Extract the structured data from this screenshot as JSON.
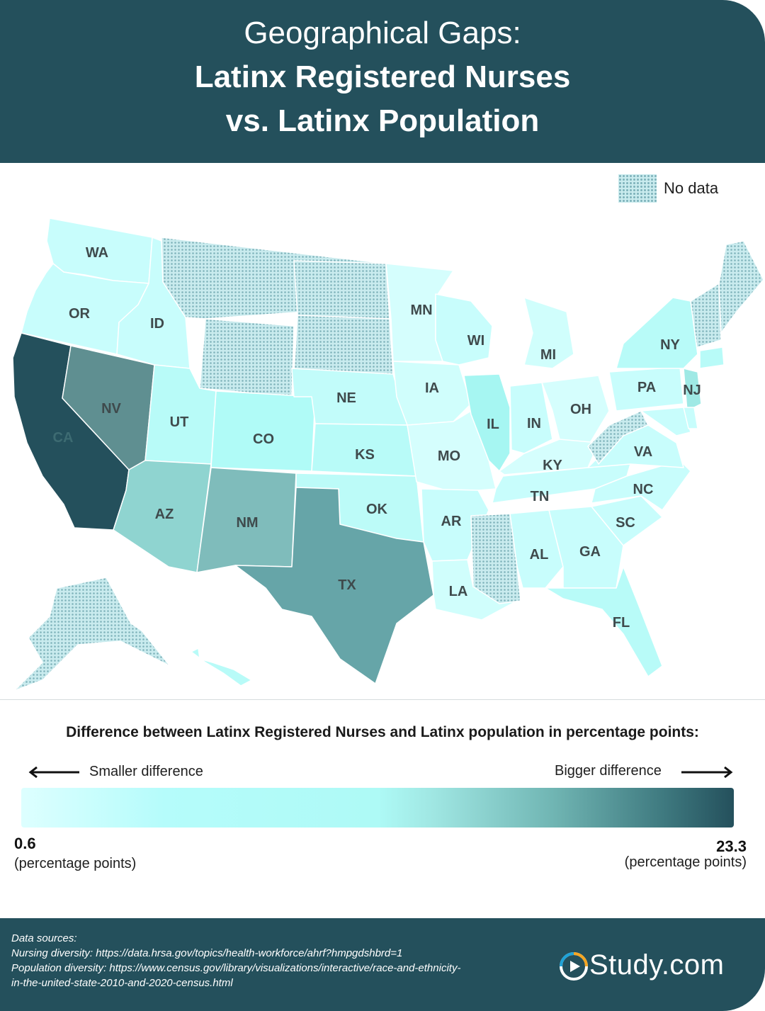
{
  "title": {
    "line1": "Geographical Gaps:",
    "line2": "Latinx Registered Nurses",
    "line3": "vs. Latinx Population"
  },
  "no_data_legend": {
    "label": "No data"
  },
  "states": [
    {
      "abbr": "WA",
      "fill": "#c8fdfc"
    },
    {
      "abbr": "OR",
      "fill": "#c8fdfc"
    },
    {
      "abbr": "CA",
      "fill": "#24505c"
    },
    {
      "abbr": "NV",
      "fill": "#5f8f91"
    },
    {
      "abbr": "ID",
      "fill": "#c8fdfc"
    },
    {
      "abbr": "MT",
      "fill": "nodata"
    },
    {
      "abbr": "WY",
      "fill": "nodata"
    },
    {
      "abbr": "UT",
      "fill": "#b8fbf8"
    },
    {
      "abbr": "AZ",
      "fill": "#8fd4d0"
    },
    {
      "abbr": "CO",
      "fill": "#b0fbf7"
    },
    {
      "abbr": "NM",
      "fill": "#7fbcbb"
    },
    {
      "abbr": "ND",
      "fill": "nodata"
    },
    {
      "abbr": "SD",
      "fill": "nodata"
    },
    {
      "abbr": "NE",
      "fill": "#c2fcfa"
    },
    {
      "abbr": "KS",
      "fill": "#b8fbf8"
    },
    {
      "abbr": "OK",
      "fill": "#bcfbf8"
    },
    {
      "abbr": "TX",
      "fill": "#66a5a8"
    },
    {
      "abbr": "MN",
      "fill": "#d5fefd"
    },
    {
      "abbr": "IA",
      "fill": "#d0fefc"
    },
    {
      "abbr": "MO",
      "fill": "#d5fefd"
    },
    {
      "abbr": "AR",
      "fill": "#c8fdfc"
    },
    {
      "abbr": "LA",
      "fill": "#d0fefc"
    },
    {
      "abbr": "WI",
      "fill": "#c8fdfc"
    },
    {
      "abbr": "IL",
      "fill": "#a6f6f2"
    },
    {
      "abbr": "MI",
      "fill": "#d0fefc"
    },
    {
      "abbr": "IN",
      "fill": "#c8fdfc"
    },
    {
      "abbr": "OH",
      "fill": "#d5fefd"
    },
    {
      "abbr": "KY",
      "fill": "#d5fefd"
    },
    {
      "abbr": "TN",
      "fill": "#c8fdfc"
    },
    {
      "abbr": "MS",
      "fill": "nodata"
    },
    {
      "abbr": "AL",
      "fill": "#c8fdfc"
    },
    {
      "abbr": "GA",
      "fill": "#c8fdfc"
    },
    {
      "abbr": "FL",
      "fill": "#b8fbf8"
    },
    {
      "abbr": "SC",
      "fill": "#c8fdfc"
    },
    {
      "abbr": "NC",
      "fill": "#c8fdfc"
    },
    {
      "abbr": "VA",
      "fill": "#c8fdfc"
    },
    {
      "abbr": "WV",
      "fill": "nodata"
    },
    {
      "abbr": "PA",
      "fill": "#c8fdfc"
    },
    {
      "abbr": "NY",
      "fill": "#b8fbf8"
    },
    {
      "abbr": "NJ",
      "fill": "#9fe9e5"
    },
    {
      "abbr": "NE-states",
      "fill": "nodata"
    },
    {
      "abbr": "ME",
      "fill": "nodata"
    },
    {
      "abbr": "CT",
      "fill": "#b8fbf8"
    },
    {
      "abbr": "MD",
      "fill": "#c8fdfc"
    },
    {
      "abbr": "DE",
      "fill": "#c8fdfc"
    },
    {
      "abbr": "AK",
      "fill": "nodata"
    },
    {
      "abbr": "HI",
      "fill": "#b8fbf8"
    }
  ],
  "legend": {
    "title": "Difference between Latinx Registered Nurses and Latinx population in percentage points:",
    "smaller_label": "Smaller difference",
    "bigger_label": "Bigger difference",
    "min_value": "0.6",
    "max_value": "23.3",
    "unit": "(percentage points)"
  },
  "footer": {
    "sources_heading": "Data sources:",
    "nursing_source": "Nursing diversity: https://data.hrsa.gov/topics/health-workforce/ahrf?hmpgdshbrd=1",
    "population_source_1": "Population diversity: https://www.census.gov/library/visualizations/interactive/race-and-ethnicity-",
    "population_source_2": "in-the-united-state-2010-and-2020-census.html",
    "logo_text": "Study.com"
  },
  "colors": {
    "header_bg": "#24505c",
    "nodata_fill": "#c9ebee",
    "nodata_dot": "#7fb3bb"
  }
}
